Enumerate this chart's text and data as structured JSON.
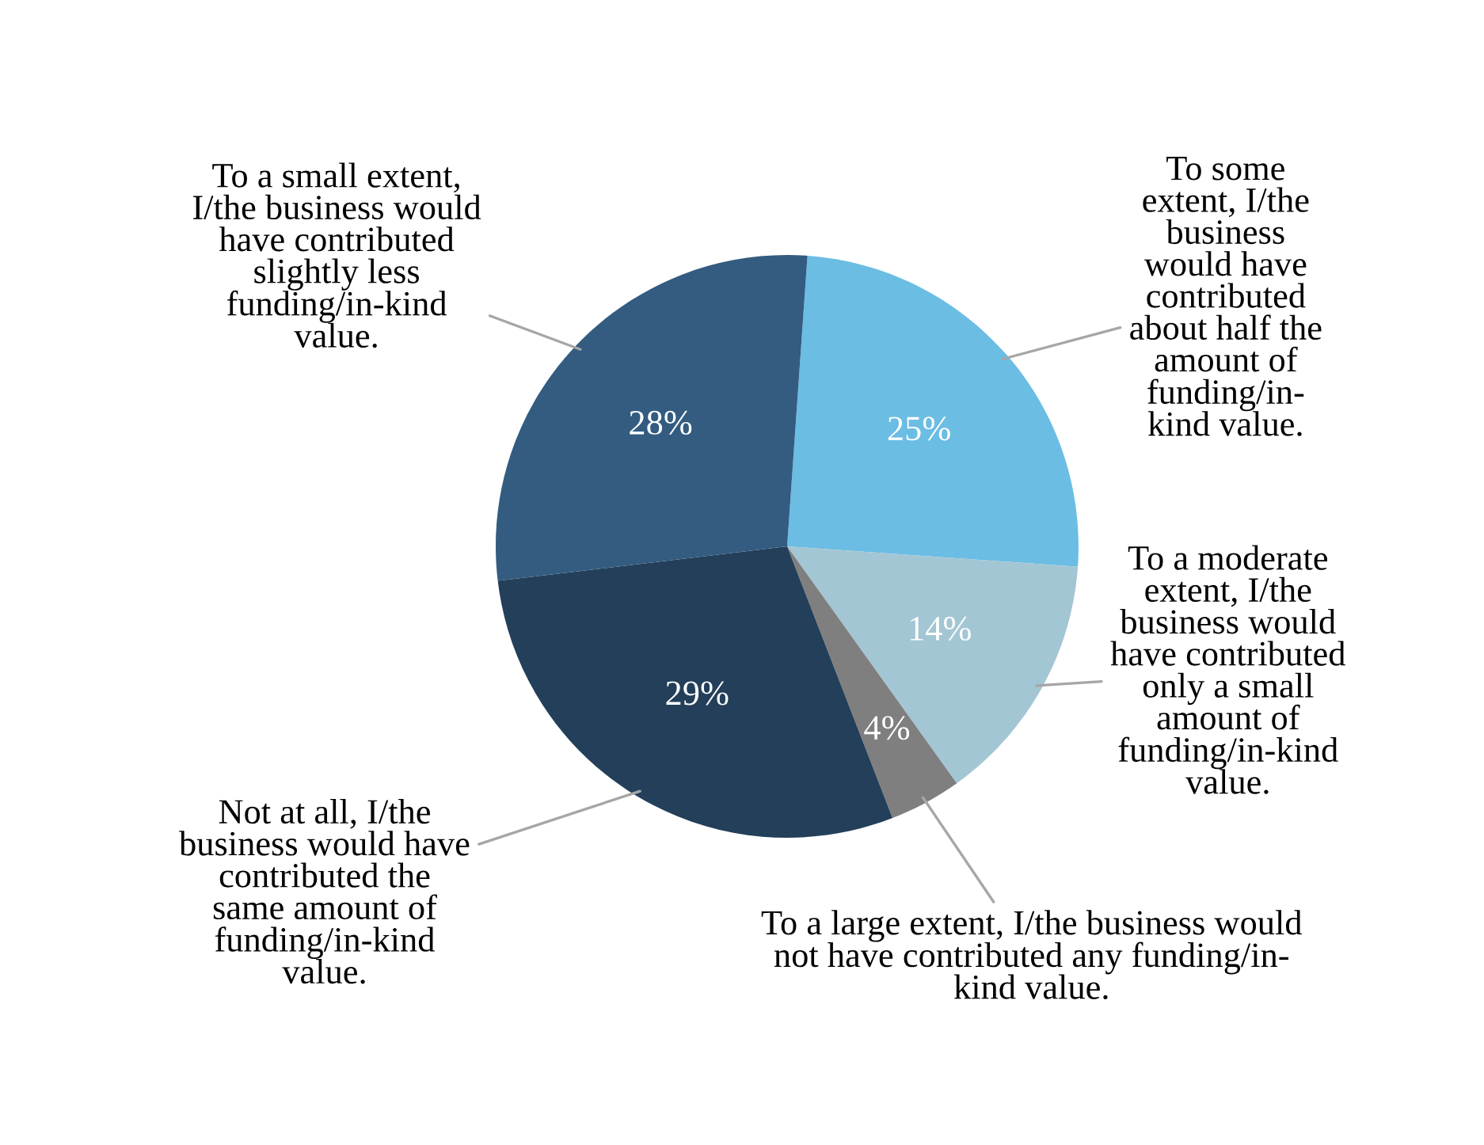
{
  "chart_data": {
    "type": "pie",
    "categories": [
      "To some\nextent, I/the\nbusiness\nwould have\ncontributed\nabout half the\namount of\nfunding/in-\nkind value.",
      "To a moderate\nextent, I/the\nbusiness would\nhave contributed\nonly a small\namount of\nfunding/in-kind\nvalue.",
      "To a large extent, I/the business would\nnot have contributed any funding/in-\nkind value.",
      "Not at all, I/the\nbusiness would have\ncontributed the\nsame amount of\nfunding/in-kind\nvalue.",
      "To a small extent,\nI/the business would\nhave contributed\nslightly less\nfunding/in-kind\nvalue."
    ],
    "values": [
      25,
      14,
      4,
      29,
      28
    ],
    "value_labels": [
      "25%",
      "14%",
      "4%",
      "29%",
      "28%"
    ],
    "colors": [
      "#6bbde3",
      "#a3c6d4",
      "#7f7f7f",
      "#233f5a",
      "#335c80"
    ],
    "legend": false
  }
}
